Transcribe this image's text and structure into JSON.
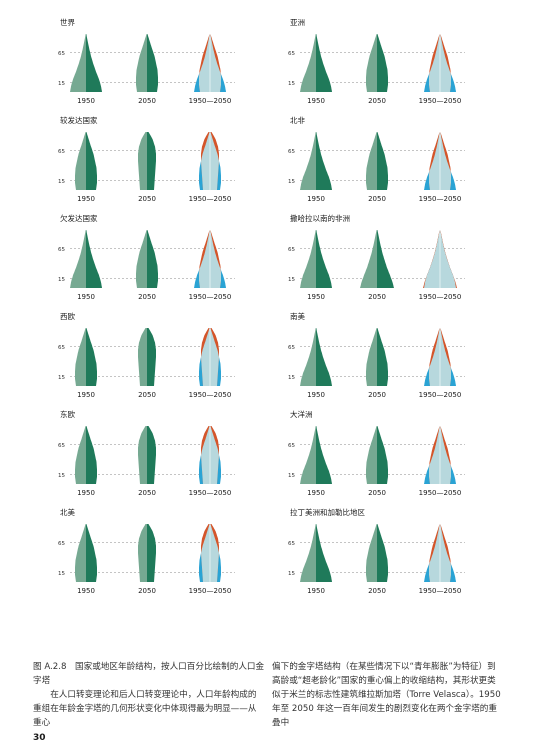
{
  "colors": {
    "green_dark": "#1f7a5a",
    "green_light": "#76a992",
    "orange": "#d4552a",
    "blue": "#2aa3d4",
    "overlay": "#b7d8dd",
    "reference_line": "#888888"
  },
  "figure": {
    "age_ticks": [
      "65",
      "15"
    ],
    "column_labels": [
      "1950",
      "2050",
      "1950—2050"
    ],
    "panels": [
      {
        "title": "世界",
        "shape_1950": "broad",
        "shape_2050": "mature"
      },
      {
        "title": "亚洲",
        "shape_1950": "broad",
        "shape_2050": "mature"
      },
      {
        "title": "较发达国家",
        "shape_1950": "mature",
        "shape_2050": "old"
      },
      {
        "title": "北非",
        "shape_1950": "broad",
        "shape_2050": "mature"
      },
      {
        "title": "欠发达国家",
        "shape_1950": "broad",
        "shape_2050": "mature"
      },
      {
        "title": "撒哈拉以南的非洲",
        "shape_1950": "broad",
        "shape_2050": "young"
      },
      {
        "title": "西欧",
        "shape_1950": "mature",
        "shape_2050": "old"
      },
      {
        "title": "南美",
        "shape_1950": "broad",
        "shape_2050": "mature"
      },
      {
        "title": "东欧",
        "shape_1950": "mature",
        "shape_2050": "old"
      },
      {
        "title": "大洋洲",
        "shape_1950": "broad",
        "shape_2050": "mature"
      },
      {
        "title": "北美",
        "shape_1950": "mature",
        "shape_2050": "old"
      },
      {
        "title": "拉丁美洲和加勒比地区",
        "shape_1950": "broad",
        "shape_2050": "mature"
      }
    ]
  },
  "caption": {
    "figure_label": "图 A.2.8　国家或地区年龄结构，按人口百分比绘制的人口金字塔",
    "left_body": "在人口转变理论和后人口转变理论中，人口年龄构成的重组在年龄金字塔的几何形状变化中体现得最为明显——从重心",
    "right_body": "偏下的金字塔结构（在某些情况下以“青年膨胀”为特征）到高龄或“超老龄化”国家的重心偏上的收缩结构，其形状更类似于米兰的标志性建筑维拉斯加塔（Torre Velasca）。1950 年至 2050 年这一百年间发生的剧烈变化在两个金字塔的重叠中"
  },
  "page_number": "30"
}
